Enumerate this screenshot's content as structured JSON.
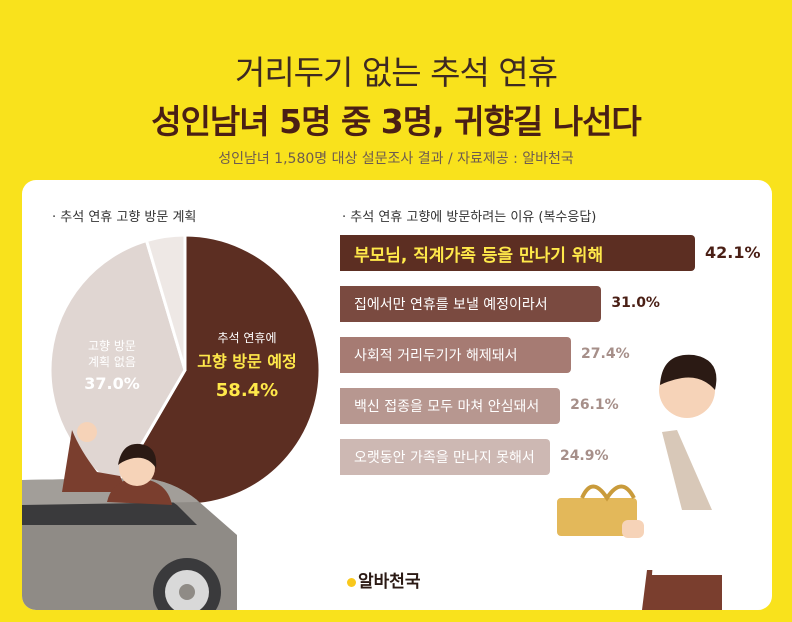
{
  "header": {
    "title_line1": "거리두기 없는 추석 연휴",
    "title_line2": "성인남녀 5명 중 3명, 귀향길 나선다",
    "subtitle": "성인남녀 1,580명 대상 설문조사 결과 / 자료제공 : 알바천국"
  },
  "chart_data": [
    {
      "type": "pie",
      "title": "· 추석 연휴 고향 방문 계획",
      "slices": [
        {
          "label_lines": [
            "추석 연휴에",
            "고향 방문 예정"
          ],
          "value": 58.4,
          "pct_text": "58.4%",
          "color": "#5C2E22"
        },
        {
          "label_lines": [
            "고향 방문",
            "계획 없음"
          ],
          "value": 37.0,
          "pct_text": "37.0%",
          "color": "#E0D6D2"
        },
        {
          "label_lines": [],
          "value": 4.6,
          "pct_text": "",
          "color": "#EEE8E5"
        }
      ]
    },
    {
      "type": "bar",
      "title": "· 추석 연휴 고향에 방문하려는 이유 (복수응답)",
      "categories": [
        "부모님, 직계가족 등을 만나기 위해",
        "집에서만 연휴를 보낼 예정이라서",
        "사회적 거리두기가 해제돼서",
        "백신 접종을 모두 마쳐 안심돼서",
        "오랫동안 가족을 만나지 못해서"
      ],
      "values": [
        42.1,
        31.0,
        27.4,
        26.1,
        24.9
      ],
      "value_labels": [
        "42.1%",
        "31.0%",
        "27.4%",
        "26.1%",
        "24.9%"
      ],
      "colors": [
        "#5C2E22",
        "#7A4A40",
        "#A67B73",
        "#B79790",
        "#CDB8B3"
      ]
    }
  ],
  "logo": {
    "text": "알바천국"
  }
}
